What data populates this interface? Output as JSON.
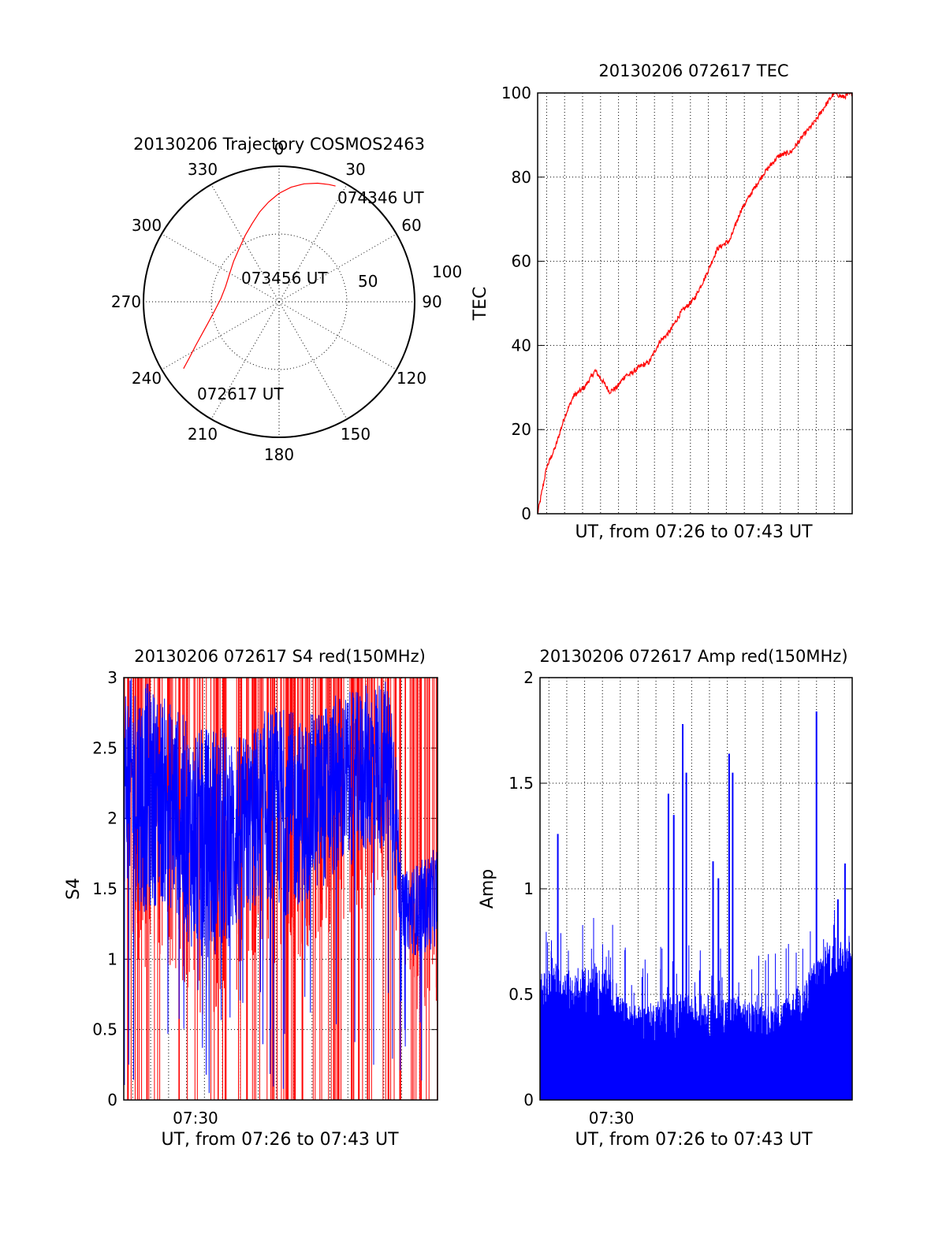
{
  "chart_data": [
    {
      "type": "polar",
      "title": "20130206 Trajectory COSMOS2463",
      "azimuth_labels": [
        "0",
        "30",
        "60",
        "90",
        "120",
        "150",
        "180",
        "210",
        "240",
        "270",
        "300",
        "330"
      ],
      "radial_labels": [
        "50",
        "100"
      ],
      "rlim": [
        0,
        100
      ],
      "series": [
        {
          "color": "#ff0000",
          "points": [
            {
              "az": 235,
              "r": 86,
              "time": "072617 UT"
            },
            {
              "az": 238,
              "r": 78
            },
            {
              "az": 242,
              "r": 70
            },
            {
              "az": 247,
              "r": 62
            },
            {
              "az": 253,
              "r": 55
            },
            {
              "az": 262,
              "r": 48
            },
            {
              "az": 273,
              "r": 43
            },
            {
              "az": 286,
              "r": 41
            },
            {
              "az": 300,
              "r": 42
            },
            {
              "az": 312,
              "r": 45
            },
            {
              "az": 323,
              "r": 49
            },
            {
              "az": 333,
              "r": 55
            },
            {
              "az": 341,
              "r": 61
            },
            {
              "az": 348,
              "r": 68
            },
            {
              "az": 354,
              "r": 74
            },
            {
              "az": 0,
              "r": 80
            },
            {
              "az": 6,
              "r": 85
            },
            {
              "az": 12,
              "r": 89
            },
            {
              "az": 18,
              "r": 92
            },
            {
              "az": 23,
              "r": 94
            },
            {
              "az": 26,
              "r": 95,
              "time": "074346 UT"
            }
          ]
        }
      ],
      "annotations": [
        "074346 UT",
        "073456 UT",
        "072617 UT"
      ]
    },
    {
      "type": "line",
      "title": "20130206 072617 TEC",
      "xlabel": "UT, from 07:26 to 07:43 UT",
      "ylabel": "TEC",
      "xlim": [
        0,
        17.5
      ],
      "ylim": [
        0,
        100
      ],
      "yticks": [
        0,
        20,
        40,
        60,
        80,
        100
      ],
      "series": [
        {
          "color": "#ff0000",
          "x": [
            0,
            0.5,
            1,
            1.5,
            2,
            2.6,
            3.2,
            3.7,
            4.0,
            4.4,
            4.9,
            5.1,
            5.7,
            6.2,
            6.8,
            7.3,
            8.0,
            8.7,
            9.3,
            10.0,
            10.7,
            11.3,
            12.0,
            12.6,
            13.4,
            14.1,
            14.8,
            15.4,
            16.0,
            16.5,
            17.0,
            17.5
          ],
          "y": [
            0,
            11,
            16,
            23,
            28,
            30,
            34,
            31,
            29,
            30,
            33,
            33,
            35,
            36,
            41,
            43,
            48,
            51,
            56,
            63,
            65,
            72,
            77,
            81,
            85,
            86,
            90,
            93,
            97,
            100,
            99,
            100
          ]
        }
      ]
    },
    {
      "type": "line",
      "title": "20130206 072617 S4 red(150MHz)",
      "xlabel": "UT, from 07:26 to 07:43 UT",
      "ylabel": "S4",
      "xlim": [
        0,
        17.5
      ],
      "ylim": [
        0,
        3
      ],
      "yticks": [
        0,
        0.5,
        1,
        1.5,
        2,
        2.5,
        3
      ],
      "xtick_label": "07:30",
      "xtick_at": 4,
      "series": [
        {
          "name": "",
          "color": "#ff0000"
        },
        {
          "name": "",
          "color": "#0000ff",
          "envelope": [
            {
              "x": 0,
              "lo": 1.6,
              "hi": 3
            },
            {
              "x": 1,
              "lo": 1.3,
              "hi": 3
            },
            {
              "x": 2,
              "lo": 1.4,
              "hi": 2.9
            },
            {
              "x": 3,
              "lo": 1.3,
              "hi": 2.8
            },
            {
              "x": 4,
              "lo": 1.0,
              "hi": 2.6
            },
            {
              "x": 5,
              "lo": 1.0,
              "hi": 2.7
            },
            {
              "x": 6,
              "lo": 1.1,
              "hi": 2.6
            },
            {
              "x": 7,
              "lo": 1.3,
              "hi": 2.6
            },
            {
              "x": 8,
              "lo": 1.4,
              "hi": 2.8
            },
            {
              "x": 9,
              "lo": 1.3,
              "hi": 2.8
            },
            {
              "x": 10,
              "lo": 1.4,
              "hi": 2.7
            },
            {
              "x": 11,
              "lo": 1.5,
              "hi": 2.8
            },
            {
              "x": 12,
              "lo": 1.6,
              "hi": 2.9
            },
            {
              "x": 13,
              "lo": 1.7,
              "hi": 2.9
            },
            {
              "x": 14,
              "lo": 1.8,
              "hi": 3
            },
            {
              "x": 15,
              "lo": 1.7,
              "hi": 3
            },
            {
              "x": 15.5,
              "lo": 1.1,
              "hi": 1.6
            },
            {
              "x": 16.5,
              "lo": 1.0,
              "hi": 1.7
            },
            {
              "x": 17.5,
              "lo": 1.1,
              "hi": 1.8
            }
          ]
        }
      ]
    },
    {
      "type": "bar",
      "title": "20130206 072617 Amp red(150MHz)",
      "xlabel": "UT, from 07:26 to 07:43 UT",
      "ylabel": "Amp",
      "xlim": [
        0,
        17.5
      ],
      "ylim": [
        0,
        2
      ],
      "yticks": [
        0,
        0.5,
        1,
        1.5,
        2
      ],
      "xtick_label": "07:30",
      "xtick_at": 4,
      "series": [
        {
          "color": "#0000ff",
          "envelope": [
            {
              "x": 0,
              "base": 0.35,
              "peak": 0.6
            },
            {
              "x": 1,
              "base": 0.4,
              "peak": 0.65
            },
            {
              "x": 2,
              "base": 0.35,
              "peak": 0.6
            },
            {
              "x": 3,
              "base": 0.35,
              "peak": 0.65
            },
            {
              "x": 4,
              "base": 0.3,
              "peak": 0.6
            },
            {
              "x": 4.5,
              "base": 0.3,
              "peak": 0.5
            },
            {
              "x": 5,
              "base": 0.3,
              "peak": 0.45
            },
            {
              "x": 6,
              "base": 0.27,
              "peak": 0.45
            },
            {
              "x": 7,
              "base": 0.27,
              "peak": 0.5
            },
            {
              "x": 8,
              "base": 0.28,
              "peak": 0.5
            },
            {
              "x": 9,
              "base": 0.28,
              "peak": 0.5
            },
            {
              "x": 10,
              "base": 0.28,
              "peak": 0.5
            },
            {
              "x": 11,
              "base": 0.28,
              "peak": 0.5
            },
            {
              "x": 12,
              "base": 0.27,
              "peak": 0.45
            },
            {
              "x": 13,
              "base": 0.28,
              "peak": 0.45
            },
            {
              "x": 14,
              "base": 0.3,
              "peak": 0.5
            },
            {
              "x": 15,
              "base": 0.35,
              "peak": 0.6
            },
            {
              "x": 16,
              "base": 0.5,
              "peak": 0.75
            },
            {
              "x": 17,
              "base": 0.55,
              "peak": 0.75
            },
            {
              "x": 17.5,
              "base": 0.55,
              "peak": 0.7
            }
          ],
          "spikes": [
            {
              "x": 1.0,
              "y": 1.26
            },
            {
              "x": 7.2,
              "y": 1.45
            },
            {
              "x": 7.5,
              "y": 1.35
            },
            {
              "x": 8.0,
              "y": 1.78
            },
            {
              "x": 8.2,
              "y": 1.55
            },
            {
              "x": 9.7,
              "y": 1.13
            },
            {
              "x": 10.0,
              "y": 1.05
            },
            {
              "x": 10.6,
              "y": 1.64
            },
            {
              "x": 10.8,
              "y": 1.55
            },
            {
              "x": 15.5,
              "y": 1.84
            },
            {
              "x": 17.1,
              "y": 1.12
            },
            {
              "x": 16.7,
              "y": 0.95
            }
          ]
        }
      ]
    }
  ]
}
